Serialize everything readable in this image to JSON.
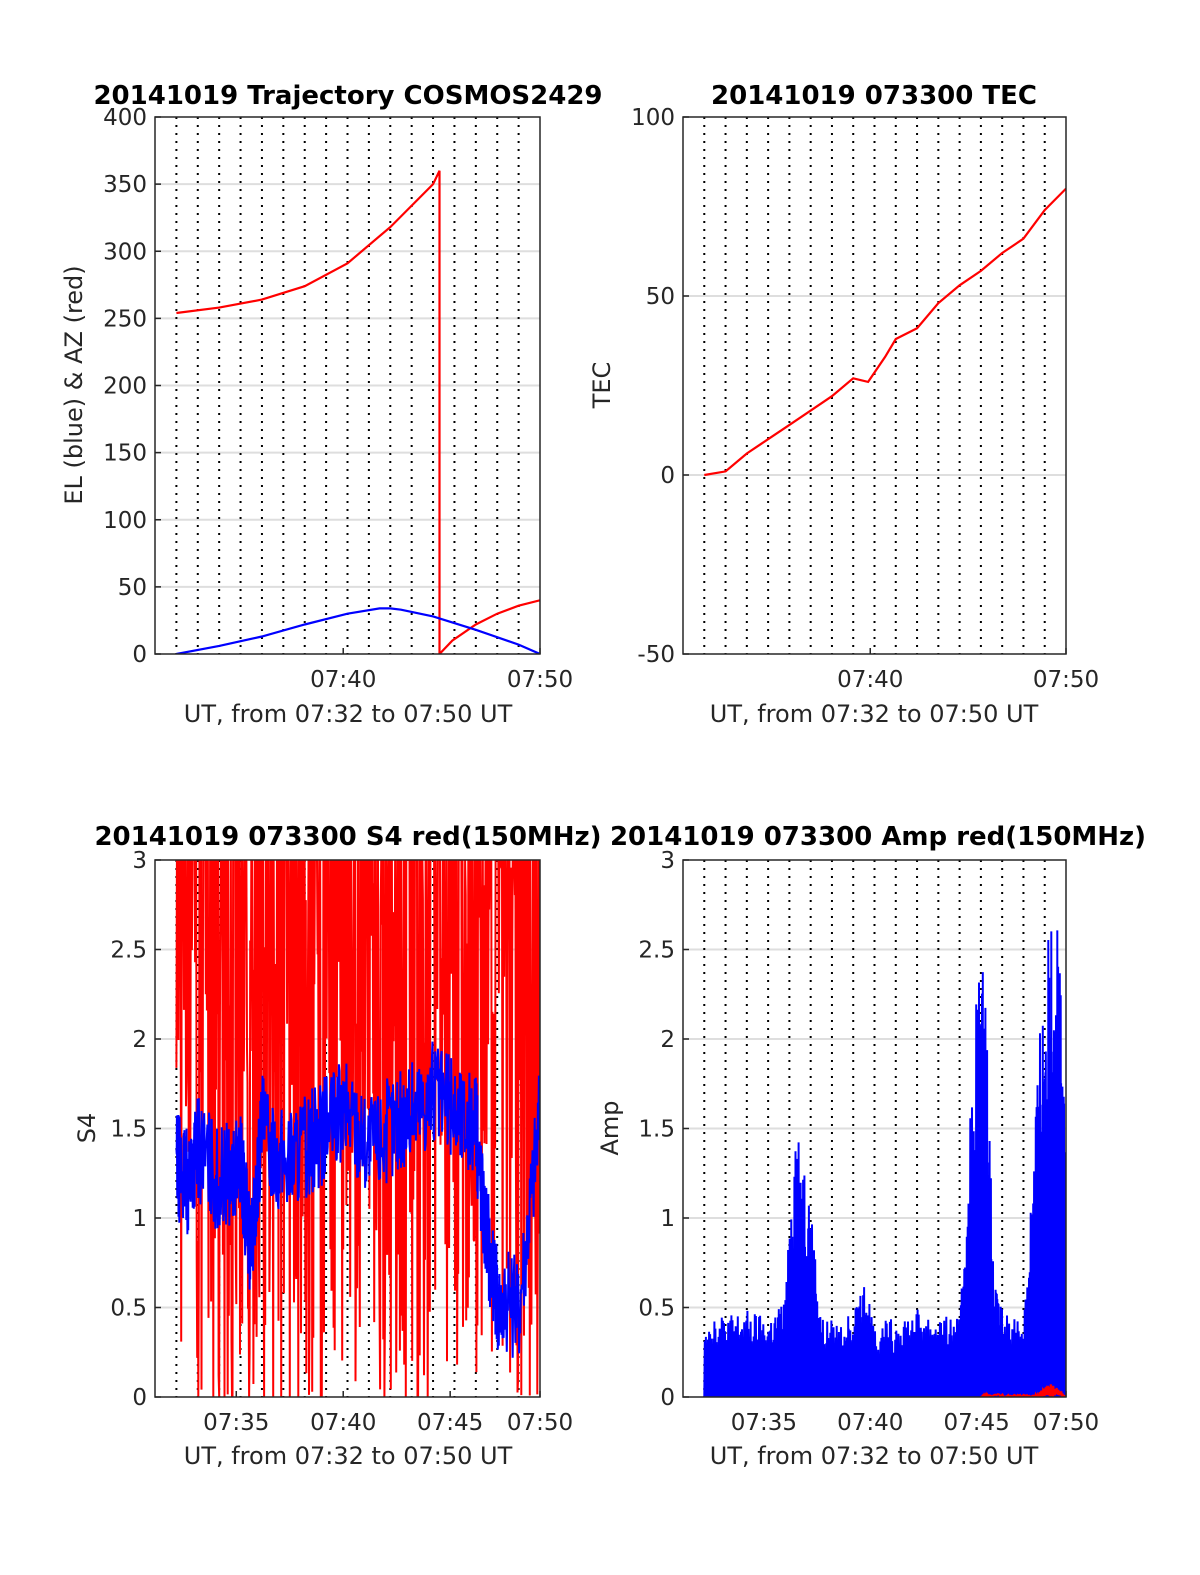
{
  "figure": {
    "background": "#ffffff"
  },
  "colors": {
    "az": "#ff0000",
    "el": "#0000ff",
    "grid": "#000000",
    "axis": "#262626"
  },
  "chart_data": [
    {
      "type": "line",
      "title": "20141019 Trajectory COSMOS2429",
      "xlabel": "UT, from 07:32 to 07:50 UT",
      "ylabel": "EL (blue) & AZ (red)",
      "xlim": [
        7.0,
        25.0
      ],
      "ylim": [
        0,
        400
      ],
      "yticks": [
        "0",
        "50",
        "100",
        "150",
        "200",
        "250",
        "300",
        "350",
        "400"
      ],
      "xticks": [
        {
          "x": 15.8,
          "label": "07:40"
        },
        {
          "x": 25.0,
          "label": "07:50"
        }
      ],
      "vertical_grid_minutes": [
        8,
        9,
        10,
        11,
        12,
        13,
        14,
        15,
        16,
        17,
        18,
        19,
        20,
        21,
        22,
        23,
        24
      ],
      "grid": true,
      "series": [
        {
          "name": "AZ (red)",
          "color": "#ff0000",
          "x": [
            8.0,
            10.0,
            12.0,
            14.0,
            16.0,
            18.0,
            20.0,
            20.3,
            20.3,
            20.9,
            22.0,
            23.0,
            24.0,
            25.0
          ],
          "y": [
            254,
            258,
            264,
            274,
            291,
            318,
            350,
            360,
            0,
            10,
            22,
            30,
            36,
            40
          ]
        },
        {
          "name": "EL (blue)",
          "color": "#0000ff",
          "x": [
            8.0,
            10.0,
            12.0,
            14.0,
            16.0,
            17.5,
            18.0,
            18.5,
            20.0,
            22.0,
            24.0,
            25.0
          ],
          "y": [
            0,
            6,
            13,
            22,
            30,
            34,
            34,
            33,
            28,
            18,
            7,
            0
          ]
        }
      ]
    },
    {
      "type": "line",
      "title": "20141019 073300 TEC",
      "xlabel": "UT, from 07:32 to 07:50 UT",
      "ylabel": "TEC",
      "xlim": [
        7.0,
        25.0
      ],
      "ylim": [
        -50,
        100
      ],
      "yticks": [
        "-50",
        "0",
        "50",
        "100"
      ],
      "xticks": [
        {
          "x": 15.8,
          "label": "07:40"
        },
        {
          "x": 25.0,
          "label": "07:50"
        }
      ],
      "vertical_grid_minutes": [
        8,
        9,
        10,
        11,
        12,
        13,
        14,
        15,
        16,
        17,
        18,
        19,
        20,
        21,
        22,
        23,
        24
      ],
      "grid": true,
      "series": [
        {
          "name": "TEC",
          "color": "#ff0000",
          "x": [
            8.0,
            9.0,
            10.0,
            11.0,
            12.0,
            13.0,
            14.0,
            15.0,
            15.7,
            16.5,
            17.0,
            18.0,
            19.0,
            20.0,
            21.0,
            22.0,
            23.0,
            24.0,
            25.0
          ],
          "y": [
            0,
            1,
            6,
            10,
            14,
            18,
            22,
            27,
            26,
            33,
            38,
            41,
            48,
            53,
            57,
            62,
            66,
            74,
            80
          ]
        }
      ]
    },
    {
      "type": "line",
      "title": "20141019 073300 S4 red(150MHz)",
      "xlabel": "UT, from 07:32 to 07:50 UT",
      "ylabel": "S4",
      "xlim": [
        7.0,
        25.0
      ],
      "ylim": [
        0,
        3
      ],
      "yticks": [
        "0",
        "0.5",
        "1",
        "1.5",
        "2",
        "2.5",
        "3"
      ],
      "xticks": [
        {
          "x": 10.8,
          "label": "07:35"
        },
        {
          "x": 15.8,
          "label": "07:40"
        },
        {
          "x": 20.8,
          "label": "07:45"
        },
        {
          "x": 25.0,
          "label": "07:50"
        }
      ],
      "vertical_grid_minutes": [
        8,
        9,
        10,
        11,
        12,
        13,
        14,
        15,
        16,
        17,
        18,
        19,
        20,
        21,
        22,
        23,
        24
      ],
      "grid": true,
      "series": [
        {
          "name": "red (150MHz)",
          "color": "#ff0000",
          "x": [
            8.0,
            9.0,
            10.0,
            11.0,
            12.0,
            13.0,
            14.0,
            15.0,
            16.0,
            17.0,
            18.0,
            19.0,
            20.0,
            21.0,
            22.0,
            23.0,
            24.0,
            25.0
          ],
          "y": [
            3.0,
            2.9,
            2.6,
            2.8,
            2.7,
            2.5,
            2.9,
            2.8,
            3.0,
            2.9,
            2.8,
            2.7,
            2.9,
            3.0,
            2.9,
            3.0,
            3.0,
            3.0
          ]
        },
        {
          "name": "blue",
          "color": "#0000ff",
          "x": [
            8.0,
            8.5,
            9.0,
            10.0,
            11.0,
            11.5,
            12.0,
            13.0,
            14.0,
            15.0,
            16.0,
            17.0,
            18.0,
            19.0,
            20.0,
            21.0,
            22.0,
            22.5,
            23.0,
            24.0,
            25.0
          ],
          "y": [
            1.3,
            1.2,
            1.4,
            1.2,
            1.3,
            0.8,
            1.5,
            1.3,
            1.4,
            1.5,
            1.6,
            1.4,
            1.5,
            1.6,
            1.7,
            1.6,
            1.5,
            0.9,
            0.55,
            0.5,
            1.6
          ]
        }
      ]
    },
    {
      "type": "line",
      "title": "20141019 073300 Amp red(150MHz)",
      "xlabel": "UT, from 07:32 to 07:50 UT",
      "ylabel": "Amp",
      "xlim": [
        7.0,
        25.0
      ],
      "ylim": [
        0,
        3
      ],
      "yticks": [
        "0",
        "0.5",
        "1",
        "1.5",
        "2",
        "2.5",
        "3"
      ],
      "xticks": [
        {
          "x": 10.8,
          "label": "07:35"
        },
        {
          "x": 15.8,
          "label": "07:40"
        },
        {
          "x": 20.8,
          "label": "07:45"
        },
        {
          "x": 25.0,
          "label": "07:50"
        }
      ],
      "vertical_grid_minutes": [
        8,
        9,
        10,
        11,
        12,
        13,
        14,
        15,
        16,
        17,
        18,
        19,
        20,
        21,
        22,
        23,
        24
      ],
      "grid": true,
      "series": [
        {
          "name": "blue",
          "color": "#0000ff",
          "x": [
            8.0,
            9.0,
            10.0,
            11.0,
            11.8,
            12.3,
            12.9,
            13.5,
            14.5,
            15.0,
            15.5,
            16.0,
            17.0,
            18.0,
            19.0,
            20.0,
            20.8,
            21.2,
            21.6,
            22.0,
            23.0,
            23.8,
            24.2,
            24.6,
            25.0
          ],
          "y": [
            0.45,
            0.42,
            0.44,
            0.4,
            0.5,
            1.45,
            1.1,
            0.4,
            0.38,
            0.45,
            0.6,
            0.38,
            0.4,
            0.45,
            0.42,
            0.4,
            2.1,
            2.2,
            0.6,
            0.45,
            0.4,
            1.9,
            2.4,
            2.55,
            1.2
          ]
        },
        {
          "name": "red",
          "color": "#ff0000",
          "x": [
            21.0,
            21.3,
            23.5,
            24.0,
            24.3,
            25.0
          ],
          "y": [
            0.0,
            0.02,
            0.01,
            0.05,
            0.08,
            0.0
          ]
        }
      ]
    }
  ]
}
